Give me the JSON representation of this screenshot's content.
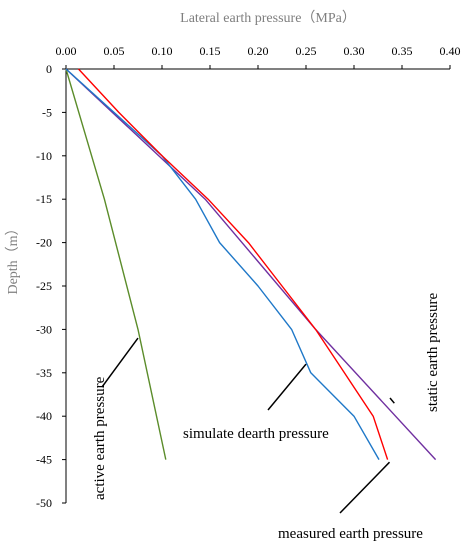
{
  "chart_data": {
    "type": "line",
    "title": "",
    "xlabel": "Lateral earth pressure（MPa）",
    "ylabel": "Depth（m）",
    "xlim": [
      0,
      0.4
    ],
    "ylim": [
      -50,
      0
    ],
    "x_ticks": [
      "0.00",
      "0.05",
      "0.10",
      "0.15",
      "0.20",
      "0.25",
      "0.30",
      "0.35",
      "0.40"
    ],
    "y_ticks": [
      "0",
      "-5",
      "-10",
      "-15",
      "-20",
      "-25",
      "-30",
      "-35",
      "-40",
      "-45",
      "-50"
    ],
    "x_axis_position": "top",
    "grid": false,
    "legend": "none (series labeled by annotations)",
    "series": [
      {
        "name": "active earth pressure",
        "color": "#5b8c2a",
        "x": [
          0.0,
          0.04,
          0.075,
          0.104
        ],
        "y": [
          0,
          -15,
          -30,
          -45
        ]
      },
      {
        "name": "static earth pressure",
        "color": "#7030a0",
        "x": [
          0.0,
          0.145,
          0.26,
          0.385
        ],
        "y": [
          0,
          -15,
          -30,
          -45
        ]
      },
      {
        "name": "simulate dearth pressure",
        "color": "#1f78c8",
        "x": [
          0.0,
          0.05,
          0.1,
          0.135,
          0.16,
          0.2,
          0.235,
          0.255,
          0.3,
          0.326
        ],
        "y": [
          0,
          -5,
          -10,
          -15,
          -20,
          -25,
          -30,
          -35,
          -40,
          -45
        ]
      },
      {
        "name": "measured earth pressure",
        "color": "#ff0000",
        "x": [
          0.013,
          0.055,
          0.1,
          0.148,
          0.19,
          0.225,
          0.26,
          0.29,
          0.32,
          0.335
        ],
        "y": [
          0,
          -5,
          -10,
          -15,
          -20,
          -25,
          -30,
          -35,
          -40,
          -45
        ]
      }
    ],
    "annotations": [
      {
        "text": "active earth pressure",
        "points_to": [
          0.075,
          -31
        ]
      },
      {
        "text": "simulate dearth pressure",
        "points_to": [
          0.25,
          -34
        ]
      },
      {
        "text": "static earth pressure",
        "points_to": [
          0.342,
          -38.5
        ]
      },
      {
        "text": "measured earth pressure",
        "points_to": [
          0.337,
          -45.3
        ]
      }
    ]
  }
}
